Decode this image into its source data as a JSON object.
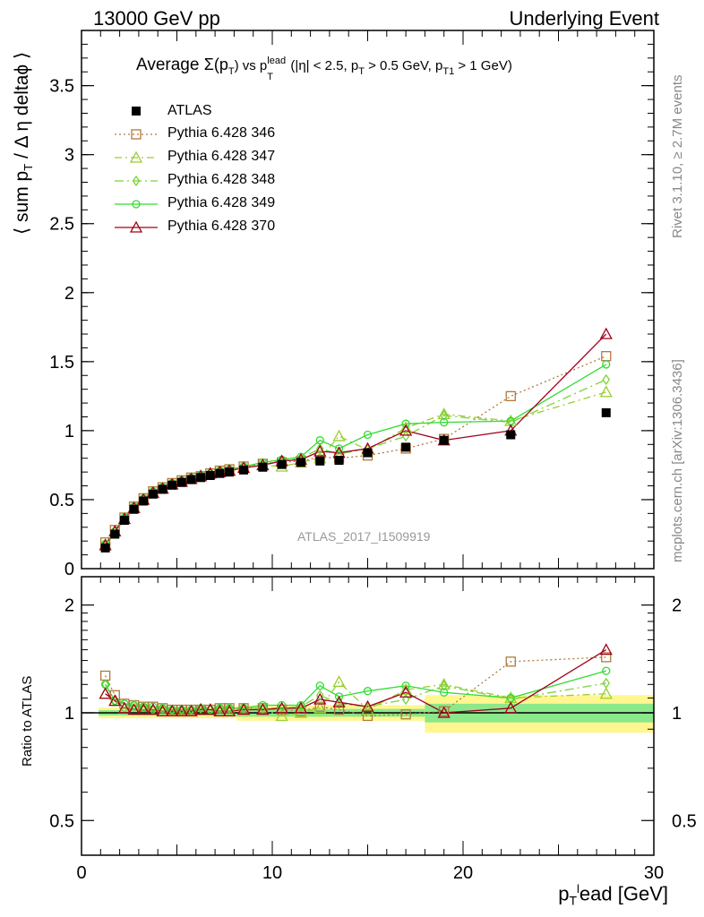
{
  "header": {
    "left": "13000 GeV pp",
    "right": "Underlying Event"
  },
  "side_labels": {
    "rivet": "Rivet 3.1.10, ≥ 2.7M events",
    "mcplots": "mcplots.cern.ch [arXiv:1306.3436]"
  },
  "plot_title": "Average Σ(pT) vs pTlead (|η| < 2.5, pT > 0.5 GeV, pT₁ > 1 GeV)",
  "plot_title_parts": {
    "a": "Average ",
    "b": "Σ(p",
    "c": "T",
    "d": ") vs p",
    "e": "lead",
    "f": "T",
    "g": " (|η| < 2.5, p",
    "h": "T",
    "i": " > 0.5 GeV, p",
    "j": "T1",
    "k": " > 1 GeV)"
  },
  "analysis_label": "ATLAS_2017_I1509919",
  "ylabel_main": "⟨ sum pT / Δ η deltaϕ ⟩",
  "ylabel_ratio": "Ratio to ATLAS",
  "xlabel": "pTlead [GeV]",
  "chart_data": [
    {
      "type": "scatter",
      "panel": "main",
      "title": "Average Σ(pT) vs pTlead (|η| < 2.5, pT > 0.5 GeV, pT1 > 1 GeV)",
      "xlabel": "pTlead [GeV]",
      "ylabel": "⟨ sum pT / Δη deltaϕ ⟩",
      "xlim": [
        0,
        30
      ],
      "ylim": [
        0,
        3.9
      ],
      "yticks": [
        0.5,
        1,
        1.5,
        2,
        2.5,
        3,
        3.5
      ],
      "ytick_labels": [
        "0.5",
        "1",
        "1.5",
        "2",
        "2.5",
        "3",
        "3.5"
      ],
      "legend_position": "top-left",
      "x": [
        1.25,
        1.75,
        2.25,
        2.75,
        3.25,
        3.75,
        4.25,
        4.75,
        5.25,
        5.75,
        6.25,
        6.75,
        7.25,
        7.75,
        8.5,
        9.5,
        10.5,
        11.5,
        12.5,
        13.5,
        15,
        17,
        19,
        22.5,
        27.5
      ],
      "series": [
        {
          "name": "ATLAS",
          "color": "#000000",
          "marker": "filled-square",
          "values": [
            0.15,
            0.25,
            0.35,
            0.43,
            0.49,
            0.54,
            0.575,
            0.605,
            0.625,
            0.645,
            0.66,
            0.675,
            0.69,
            0.7,
            0.715,
            0.735,
            0.755,
            0.77,
            0.78,
            0.785,
            0.84,
            0.88,
            0.93,
            0.97,
            1.13
          ]
        },
        {
          "name": "Pythia 6.428 346",
          "color": "#b07a3c",
          "marker": "open-square",
          "dash": "2,3",
          "values": [
            0.19,
            0.28,
            0.37,
            0.45,
            0.51,
            0.56,
            0.59,
            0.62,
            0.64,
            0.66,
            0.67,
            0.69,
            0.71,
            0.72,
            0.74,
            0.76,
            0.77,
            0.78,
            0.81,
            0.8,
            0.82,
            0.87,
            0.94,
            1.25,
            1.54
          ]
        },
        {
          "name": "Pythia 6.428 347",
          "color": "#9acd32",
          "marker": "open-triangle",
          "dash": "8,4,2,4",
          "values": [
            0.17,
            0.27,
            0.36,
            0.44,
            0.5,
            0.55,
            0.58,
            0.61,
            0.63,
            0.65,
            0.67,
            0.69,
            0.7,
            0.71,
            0.73,
            0.75,
            0.74,
            0.77,
            0.8,
            0.96,
            0.86,
            1.02,
            1.12,
            1.07,
            1.28
          ]
        },
        {
          "name": "Pythia 6.428 348",
          "color": "#7cd23c",
          "marker": "open-diamond",
          "dash": "10,4,2,4",
          "values": [
            0.18,
            0.27,
            0.36,
            0.45,
            0.51,
            0.55,
            0.59,
            0.62,
            0.64,
            0.66,
            0.68,
            0.69,
            0.71,
            0.72,
            0.74,
            0.76,
            0.78,
            0.8,
            0.87,
            0.83,
            0.87,
            0.96,
            1.11,
            1.06,
            1.37
          ]
        },
        {
          "name": "Pythia 6.428 349",
          "color": "#32dc32",
          "marker": "open-circle",
          "dash": "",
          "values": [
            0.18,
            0.27,
            0.37,
            0.45,
            0.51,
            0.56,
            0.59,
            0.62,
            0.64,
            0.66,
            0.68,
            0.69,
            0.71,
            0.72,
            0.74,
            0.77,
            0.79,
            0.81,
            0.93,
            0.87,
            0.97,
            1.05,
            1.06,
            1.07,
            1.48
          ]
        },
        {
          "name": "Pythia 6.428 370",
          "color": "#a0001a",
          "marker": "open-triangle",
          "dash": "",
          "values": [
            0.17,
            0.27,
            0.36,
            0.44,
            0.5,
            0.55,
            0.58,
            0.61,
            0.63,
            0.65,
            0.67,
            0.69,
            0.7,
            0.71,
            0.73,
            0.75,
            0.78,
            0.79,
            0.85,
            0.84,
            0.87,
            1.0,
            0.93,
            1.0,
            1.7
          ]
        }
      ]
    },
    {
      "type": "scatter",
      "panel": "ratio",
      "ylabel": "Ratio to ATLAS",
      "xlabel": "pTlead [GeV]",
      "log_y": true,
      "xlim": [
        0,
        30
      ],
      "ylim": [
        0.4,
        2.4
      ],
      "xticks": [
        0,
        10,
        20,
        30
      ],
      "xtick_labels": [
        "0",
        "10",
        "20",
        "30"
      ],
      "yticks": [
        0.5,
        1,
        2
      ],
      "ytick_labels": [
        "0.5",
        "1",
        "2"
      ],
      "x": [
        1.25,
        1.75,
        2.25,
        2.75,
        3.25,
        3.75,
        4.25,
        4.75,
        5.25,
        5.75,
        6.25,
        6.75,
        7.25,
        7.75,
        8.5,
        9.5,
        10.5,
        11.5,
        12.5,
        13.5,
        15,
        17,
        19,
        22.5,
        27.5
      ],
      "series": [
        {
          "name": "Pythia 6.428 346",
          "values": [
            1.27,
            1.12,
            1.06,
            1.05,
            1.04,
            1.04,
            1.03,
            1.02,
            1.02,
            1.02,
            1.02,
            1.02,
            1.03,
            1.03,
            1.03,
            1.03,
            1.02,
            1.01,
            1.04,
            1.02,
            0.98,
            0.99,
            1.01,
            1.39,
            1.43
          ]
        },
        {
          "name": "Pythia 6.428 347",
          "values": [
            1.13,
            1.08,
            1.03,
            1.02,
            1.02,
            1.02,
            1.01,
            1.01,
            1.01,
            1.01,
            1.02,
            1.02,
            1.01,
            1.01,
            1.02,
            1.02,
            0.98,
            1.0,
            1.03,
            1.22,
            1.02,
            1.16,
            1.2,
            1.1,
            1.13
          ]
        },
        {
          "name": "Pythia 6.428 348",
          "values": [
            1.2,
            1.08,
            1.03,
            1.05,
            1.04,
            1.02,
            1.03,
            1.02,
            1.02,
            1.02,
            1.03,
            1.02,
            1.03,
            1.03,
            1.03,
            1.03,
            1.03,
            1.04,
            1.12,
            1.06,
            1.04,
            1.09,
            1.19,
            1.09,
            1.21
          ]
        },
        {
          "name": "Pythia 6.428 349",
          "values": [
            1.2,
            1.08,
            1.06,
            1.05,
            1.04,
            1.04,
            1.03,
            1.02,
            1.02,
            1.02,
            1.03,
            1.02,
            1.03,
            1.03,
            1.03,
            1.05,
            1.05,
            1.05,
            1.19,
            1.11,
            1.15,
            1.19,
            1.14,
            1.1,
            1.31
          ]
        },
        {
          "name": "Pythia 6.428 370",
          "values": [
            1.13,
            1.08,
            1.03,
            1.02,
            1.02,
            1.02,
            1.01,
            1.01,
            1.01,
            1.01,
            1.02,
            1.02,
            1.01,
            1.01,
            1.02,
            1.02,
            1.03,
            1.03,
            1.09,
            1.07,
            1.04,
            1.14,
            1.0,
            1.03,
            1.5
          ]
        }
      ]
    }
  ]
}
